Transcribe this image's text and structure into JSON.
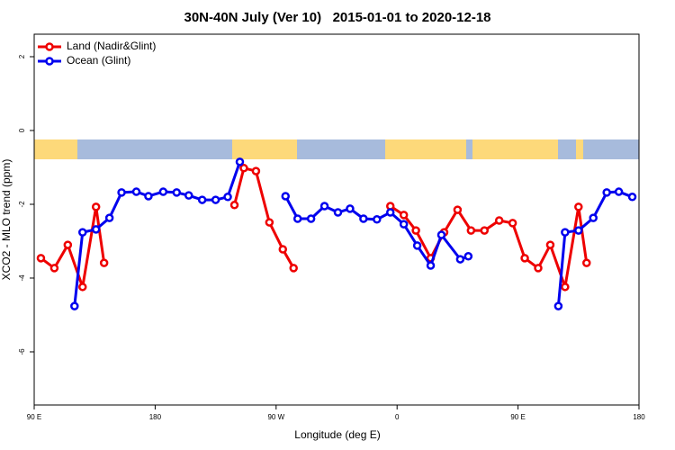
{
  "chart_data": {
    "type": "line",
    "title": "30N-40N July (Ver 10)   2015-01-01 to 2020-12-18",
    "x_label": "Longitude (deg E)",
    "y_label": "XCO2 - MLO trend (ppm)",
    "xlim": [
      90,
      540
    ],
    "xticks": [
      {
        "value": 90,
        "label": "90 E"
      },
      180,
      {
        "value": 270,
        "label": "90 W"
      },
      {
        "value": 360,
        "label": "0"
      },
      {
        "value": 450,
        "label": "90 E"
      },
      {
        "value": 540,
        "label": "180"
      }
    ],
    "ylim": [
      -7.44,
      2.61
    ],
    "yticks": [
      -6,
      -4,
      -2,
      0,
      2
    ],
    "legend": "top-left",
    "series": [
      {
        "name": "Land (Nadir&Glint)",
        "color": "#ee0000",
        "x": [
          95,
          105,
          115,
          126,
          136,
          142,
          null,
          239,
          246,
          255,
          265,
          275,
          283,
          null,
          355,
          365,
          374,
          385,
          395,
          405,
          415,
          425,
          436,
          446,
          455,
          465,
          474,
          485,
          495,
          501
        ],
        "values": [
          -3.46,
          -3.73,
          -3.1,
          -4.24,
          -2.07,
          -3.59,
          null,
          -2.02,
          -1.02,
          -1.1,
          -2.49,
          -3.22,
          -3.73,
          null,
          -2.05,
          -2.29,
          -2.71,
          -3.46,
          -2.76,
          -2.15,
          -2.71,
          -2.71,
          -2.44,
          -2.51,
          -3.46,
          -3.73,
          -3.1,
          -4.24,
          -2.07,
          -3.59
        ]
      },
      {
        "name": "Ocean (Glint)",
        "color": "#0000ee",
        "x": [
          120,
          126,
          136,
          146,
          155,
          166,
          175,
          186,
          196,
          205,
          215,
          225,
          234,
          243,
          null,
          277,
          286,
          296,
          306,
          316,
          325,
          335,
          345,
          355,
          365,
          375,
          385,
          393,
          407,
          413,
          null,
          480,
          485,
          495,
          506,
          516,
          525,
          535
        ],
        "values": [
          -4.76,
          -2.76,
          -2.68,
          -2.37,
          -1.68,
          -1.66,
          -1.78,
          -1.66,
          -1.68,
          -1.76,
          -1.88,
          -1.88,
          -1.8,
          -0.85,
          null,
          -1.78,
          -2.39,
          -2.39,
          -2.05,
          -2.22,
          -2.12,
          -2.39,
          -2.41,
          -2.22,
          -2.54,
          -3.12,
          -3.66,
          -2.83,
          -3.49,
          -3.41,
          null,
          -4.76,
          -2.76,
          -2.71,
          -2.37,
          -1.68,
          -1.66,
          -1.8
        ]
      }
    ]
  }
}
